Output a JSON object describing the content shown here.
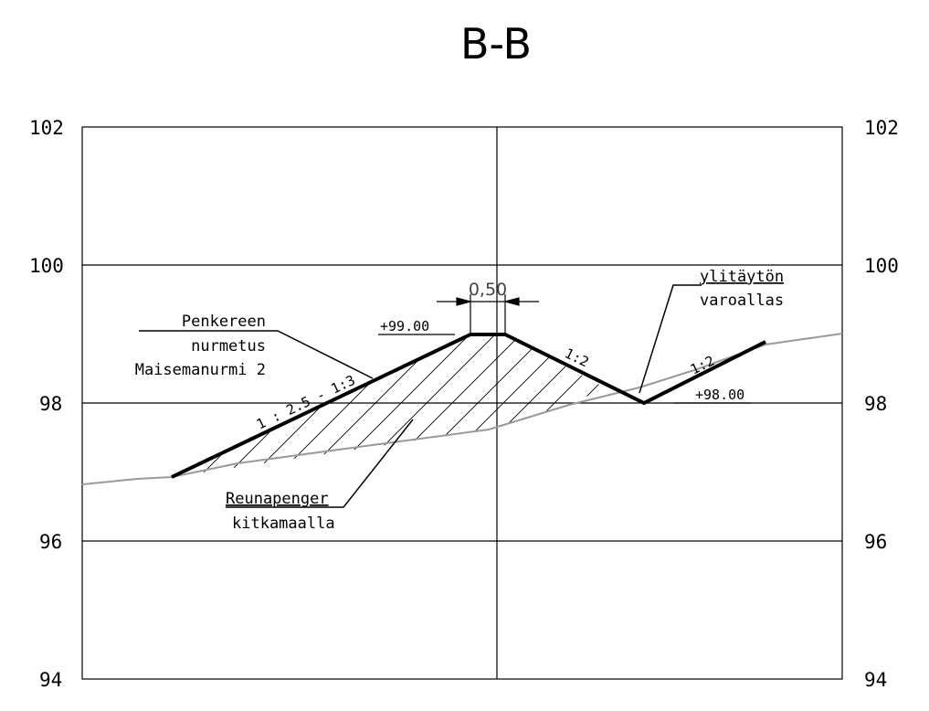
{
  "title": "B-B",
  "elevation_axis": {
    "ticks": [
      "102",
      "100",
      "98",
      "96",
      "94"
    ],
    "range": [
      94,
      102
    ]
  },
  "levels": {
    "crest": "+99.00",
    "pond_bottom": "+98.00"
  },
  "slopes": {
    "embankment_left": "1 : 2.5 - 1:3",
    "inner_right": "1:2",
    "pond_right": "1:2"
  },
  "dimension": {
    "crest_width": "0,50"
  },
  "labels": {
    "penkereen": "Penkereen",
    "nurmetus": "nurmetus",
    "maisemanurmi": "Maisemanurmi 2",
    "ylitayton": "ylitäytön",
    "varoallas": "varoallas",
    "reunapenger": "Reunapenger",
    "kitkamaalla": "kitkamaalla"
  },
  "colors": {
    "lines": "#000000",
    "ground": "#9a9a9a",
    "hatch": "#000000"
  }
}
